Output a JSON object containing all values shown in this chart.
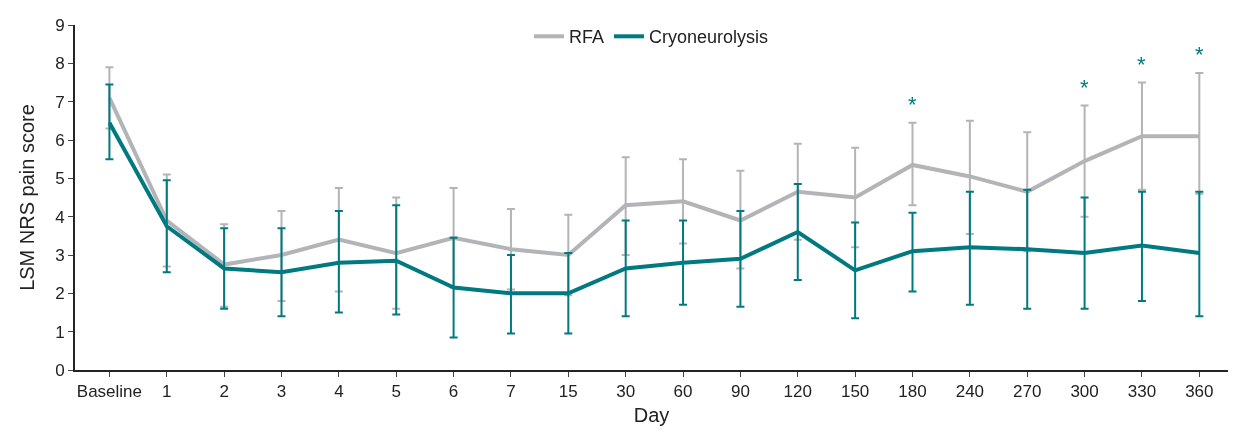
{
  "chart_data": {
    "type": "line",
    "xlabel": "Day",
    "ylabel": "LSM NRS pain score",
    "categories": [
      "Baseline",
      "1",
      "2",
      "3",
      "4",
      "5",
      "6",
      "7",
      "15",
      "30",
      "60",
      "90",
      "120",
      "150",
      "180",
      "240",
      "270",
      "300",
      "330",
      "360"
    ],
    "series": [
      {
        "name": "RFA",
        "color": "#b3b4b8",
        "values": [
          7.1,
          3.9,
          2.75,
          3.0,
          3.4,
          3.05,
          3.45,
          3.15,
          3.0,
          4.3,
          4.4,
          3.9,
          4.65,
          4.5,
          5.35,
          5.05,
          4.65,
          5.45,
          6.1,
          6.1
        ],
        "errors": [
          [
            6.3,
            7.9
          ],
          [
            2.7,
            5.1
          ],
          [
            1.65,
            3.8
          ],
          [
            1.8,
            4.15
          ],
          [
            2.05,
            4.75
          ],
          [
            1.6,
            4.5
          ],
          [
            2.15,
            4.75
          ],
          [
            2.1,
            4.2
          ],
          [
            1.95,
            4.05
          ],
          [
            3.0,
            5.55
          ],
          [
            3.3,
            5.5
          ],
          [
            2.65,
            5.2
          ],
          [
            3.4,
            5.9
          ],
          [
            3.2,
            5.8
          ],
          [
            4.3,
            6.45
          ],
          [
            3.55,
            6.5
          ],
          [
            3.1,
            6.2
          ],
          [
            4.0,
            6.9
          ],
          [
            4.7,
            7.5
          ],
          [
            4.6,
            7.75
          ]
        ],
        "value_labels": [
          null,
          null,
          null,
          null,
          null,
          null,
          null,
          null,
          null,
          null,
          null,
          null,
          null,
          null,
          "*",
          null,
          null,
          "*",
          "*",
          "*"
        ]
      },
      {
        "name": "Cryoneurolysis",
        "color": "#007a80",
        "values": [
          6.45,
          3.75,
          2.65,
          2.55,
          2.8,
          2.85,
          2.15,
          2.0,
          2.0,
          2.65,
          2.8,
          2.9,
          3.6,
          2.6,
          3.1,
          3.2,
          3.15,
          3.05,
          3.25,
          3.05
        ],
        "errors": [
          [
            5.5,
            7.45
          ],
          [
            2.55,
            4.95
          ],
          [
            1.6,
            3.7
          ],
          [
            1.4,
            3.7
          ],
          [
            1.5,
            4.15
          ],
          [
            1.45,
            4.3
          ],
          [
            0.85,
            3.45
          ],
          [
            0.95,
            3.0
          ],
          [
            0.95,
            3.05
          ],
          [
            1.4,
            3.9
          ],
          [
            1.7,
            3.9
          ],
          [
            1.65,
            4.15
          ],
          [
            2.35,
            4.85
          ],
          [
            1.35,
            3.85
          ],
          [
            2.05,
            4.1
          ],
          [
            1.7,
            4.65
          ],
          [
            1.6,
            4.7
          ],
          [
            1.6,
            4.5
          ],
          [
            1.8,
            4.65
          ],
          [
            1.4,
            4.65
          ]
        ]
      }
    ],
    "ylim": [
      0,
      9
    ],
    "yticks": [
      0,
      1,
      2,
      3,
      4,
      5,
      6,
      7,
      8,
      9
    ],
    "legend": "top",
    "grid": false,
    "marker": "none",
    "line_style": "solid"
  }
}
